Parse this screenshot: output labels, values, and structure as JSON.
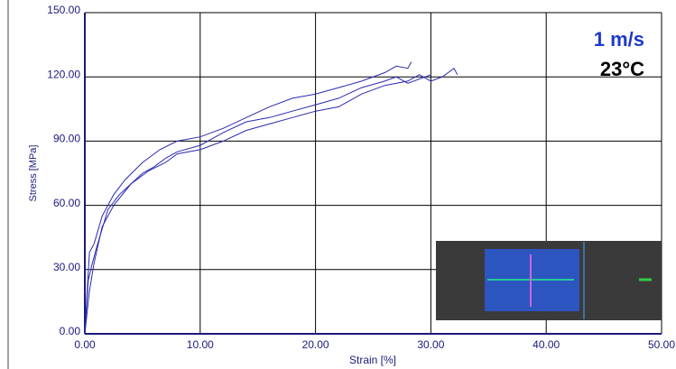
{
  "chart_data": {
    "type": "line",
    "x_label": "Strain [%]",
    "y_label": "Stress [MPa]",
    "annotations": [
      "1 m/s",
      "23°C"
    ],
    "xlim": [
      0,
      50
    ],
    "ylim": [
      0,
      150
    ],
    "xticks": [
      {
        "value": 0,
        "label": "0.00"
      },
      {
        "value": 10,
        "label": "10.00"
      },
      {
        "value": 20,
        "label": "20.00"
      },
      {
        "value": 30,
        "label": "30.00"
      },
      {
        "value": 40,
        "label": "40.00"
      },
      {
        "value": 50,
        "label": "50.00"
      }
    ],
    "yticks": [
      {
        "value": 0,
        "label": "0.00"
      },
      {
        "value": 30,
        "label": "30.00"
      },
      {
        "value": 60,
        "label": "60.00"
      },
      {
        "value": 90,
        "label": "90.00"
      },
      {
        "value": 120,
        "label": "120.00"
      },
      {
        "value": 150,
        "label": "150.00"
      }
    ],
    "grid": true,
    "series": [
      {
        "color": "#2a2ab0",
        "x": [
          0,
          0.2,
          0.4,
          0.8,
          1.5,
          2.5,
          3.5,
          5,
          6.5,
          8,
          10,
          12,
          14,
          16,
          18,
          20,
          22,
          24,
          26,
          27,
          28,
          28.3
        ],
        "values": [
          0,
          20,
          38,
          42,
          55,
          65,
          72,
          80,
          86,
          90,
          92,
          96,
          101,
          106,
          110,
          112,
          115,
          118,
          122,
          125,
          124,
          127
        ]
      },
      {
        "color": "#2a2ab0",
        "x": [
          0,
          0.3,
          0.6,
          1,
          2,
          3,
          4,
          5,
          6,
          7,
          8,
          10,
          12,
          14,
          16,
          18,
          20,
          22,
          24,
          26,
          27,
          28,
          30
        ],
        "values": [
          0,
          25,
          32,
          40,
          58,
          65,
          70,
          75,
          78,
          82,
          85,
          88,
          94,
          99,
          101,
          104,
          107,
          110,
          115,
          118,
          120,
          117,
          121
        ]
      },
      {
        "color": "#2a2ab0",
        "x": [
          0,
          0.4,
          0.8,
          1.5,
          2.5,
          4,
          5.5,
          7,
          8,
          10,
          12,
          14,
          16,
          18,
          20,
          22,
          24,
          26,
          28,
          29,
          30,
          31,
          32,
          32.3
        ],
        "values": [
          0,
          20,
          33,
          50,
          60,
          70,
          76,
          80,
          84,
          86,
          90,
          95,
          98,
          101,
          104,
          106,
          112,
          116,
          118,
          121,
          118,
          120,
          124,
          121
        ]
      }
    ]
  }
}
